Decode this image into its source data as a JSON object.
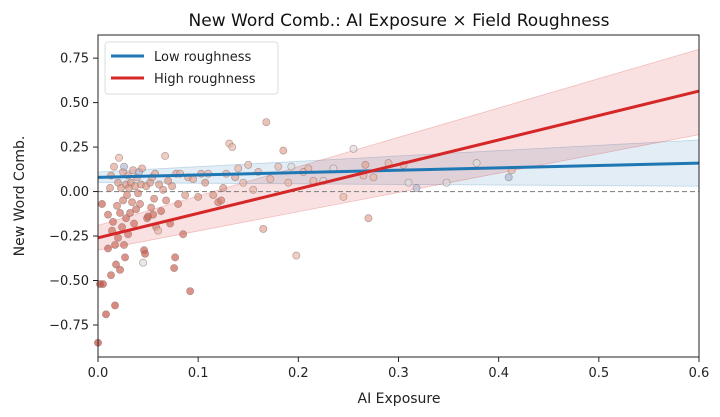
{
  "chart_data": {
    "type": "scatter",
    "title": "New Word Comb.: AI Exposure × Field Roughness",
    "xlabel": "AI Exposure",
    "ylabel": "New Word Comb.",
    "xlim": [
      0.0,
      0.6
    ],
    "ylim": [
      -0.93,
      0.88
    ],
    "xticks": [
      "0.0",
      "0.1",
      "0.2",
      "0.3",
      "0.4",
      "0.5",
      "0.6"
    ],
    "yticks": [
      "−0.75",
      "−0.50",
      "−0.25",
      "0.00",
      "0.25",
      "0.50",
      "0.75"
    ],
    "xtick_values": [
      0.0,
      0.1,
      0.2,
      0.3,
      0.4,
      0.5,
      0.6
    ],
    "ytick_values": [
      -0.75,
      -0.5,
      -0.25,
      0.0,
      0.25,
      0.5,
      0.75
    ],
    "reference_line": {
      "y": 0.0,
      "style": "dashed",
      "color": "#888888"
    },
    "legend": {
      "placement": "top-left"
    },
    "series": [
      {
        "name": "Low roughness",
        "type": "line",
        "color": "#1f77b4",
        "x": [
          0.0,
          0.6
        ],
        "y": [
          0.08,
          0.16
        ],
        "ci_lower": [
          0.05,
          0.03
        ],
        "ci_upper": [
          0.11,
          0.29
        ]
      },
      {
        "name": "High roughness",
        "type": "line",
        "color": "#d62728",
        "x": [
          0.0,
          0.6
        ],
        "y": [
          -0.26,
          0.565
        ],
        "ci_lower": [
          -0.33,
          0.32
        ],
        "ci_upper": [
          -0.19,
          0.8
        ]
      }
    ],
    "points": [
      {
        "x": 0.0,
        "y": -0.85,
        "c": "#c0392b"
      },
      {
        "x": 0.002,
        "y": -0.52,
        "c": "#c44a3a"
      },
      {
        "x": 0.005,
        "y": -0.52,
        "c": "#c44a3a"
      },
      {
        "x": 0.004,
        "y": -0.07,
        "c": "#c8594a"
      },
      {
        "x": 0.008,
        "y": -0.69,
        "c": "#c44a3a"
      },
      {
        "x": 0.01,
        "y": -0.32,
        "c": "#c8594a"
      },
      {
        "x": 0.01,
        "y": -0.13,
        "c": "#cc6656"
      },
      {
        "x": 0.012,
        "y": 0.02,
        "c": "#d9907e"
      },
      {
        "x": 0.013,
        "y": -0.47,
        "c": "#c8594a"
      },
      {
        "x": 0.013,
        "y": 0.09,
        "c": "#d9907e"
      },
      {
        "x": 0.014,
        "y": -0.22,
        "c": "#cc6656"
      },
      {
        "x": 0.015,
        "y": -0.17,
        "c": "#cc6656"
      },
      {
        "x": 0.016,
        "y": 0.14,
        "c": "#e0a090"
      },
      {
        "x": 0.017,
        "y": -0.3,
        "c": "#cc6656"
      },
      {
        "x": 0.017,
        "y": -0.64,
        "c": "#c44a3a"
      },
      {
        "x": 0.018,
        "y": -0.41,
        "c": "#c8594a"
      },
      {
        "x": 0.019,
        "y": -0.08,
        "c": "#d27a68"
      },
      {
        "x": 0.02,
        "y": 0.05,
        "c": "#d9907e"
      },
      {
        "x": 0.02,
        "y": -0.26,
        "c": "#cc6656"
      },
      {
        "x": 0.021,
        "y": 0.19,
        "c": "#e8b3a4"
      },
      {
        "x": 0.022,
        "y": -0.12,
        "c": "#cc6656"
      },
      {
        "x": 0.022,
        "y": -0.44,
        "c": "#c8594a"
      },
      {
        "x": 0.023,
        "y": 0.02,
        "c": "#d9907e"
      },
      {
        "x": 0.024,
        "y": -0.2,
        "c": "#cc6656"
      },
      {
        "x": 0.025,
        "y": 0.11,
        "c": "#e0a090"
      },
      {
        "x": 0.025,
        "y": -0.05,
        "c": "#d27a68"
      },
      {
        "x": 0.026,
        "y": 0.14,
        "c": "#a9b7d6"
      },
      {
        "x": 0.026,
        "y": -0.3,
        "c": "#cc6656"
      },
      {
        "x": 0.027,
        "y": -0.37,
        "c": "#c8594a"
      },
      {
        "x": 0.028,
        "y": -0.15,
        "c": "#cc6656"
      },
      {
        "x": 0.028,
        "y": 0.04,
        "c": "#d9907e"
      },
      {
        "x": 0.029,
        "y": -0.02,
        "c": "#d27a68"
      },
      {
        "x": 0.03,
        "y": 0.09,
        "c": "#e0a090"
      },
      {
        "x": 0.03,
        "y": -0.24,
        "c": "#cc6656"
      },
      {
        "x": 0.031,
        "y": 0.02,
        "c": "#d9907e"
      },
      {
        "x": 0.032,
        "y": -0.12,
        "c": "#cc6656"
      },
      {
        "x": 0.033,
        "y": 0.05,
        "c": "#d9907e"
      },
      {
        "x": 0.034,
        "y": -0.06,
        "c": "#d27a68"
      },
      {
        "x": 0.035,
        "y": 0.12,
        "c": "#e0a090"
      },
      {
        "x": 0.036,
        "y": -0.18,
        "c": "#cc6656"
      },
      {
        "x": 0.037,
        "y": 0.03,
        "c": "#d9907e"
      },
      {
        "x": 0.038,
        "y": -0.1,
        "c": "#cc6656"
      },
      {
        "x": 0.039,
        "y": 0.08,
        "c": "#e0a090"
      },
      {
        "x": 0.04,
        "y": -0.01,
        "c": "#d27a68"
      },
      {
        "x": 0.041,
        "y": 0.11,
        "c": "#a9b7d6"
      },
      {
        "x": 0.042,
        "y": -0.07,
        "c": "#d27a68"
      },
      {
        "x": 0.043,
        "y": 0.04,
        "c": "#d9907e"
      },
      {
        "x": 0.044,
        "y": 0.13,
        "c": "#e0a090"
      },
      {
        "x": 0.045,
        "y": -0.4,
        "c": "#dcdcdc"
      },
      {
        "x": 0.046,
        "y": -0.33,
        "c": "#c8594a"
      },
      {
        "x": 0.047,
        "y": -0.35,
        "c": "#c8594a"
      },
      {
        "x": 0.048,
        "y": 0.03,
        "c": "#d9907e"
      },
      {
        "x": 0.049,
        "y": -0.15,
        "c": "#cc6656"
      },
      {
        "x": 0.05,
        "y": -0.14,
        "c": "#cc6656"
      },
      {
        "x": 0.052,
        "y": 0.05,
        "c": "#d9907e"
      },
      {
        "x": 0.053,
        "y": -0.09,
        "c": "#d27a68"
      },
      {
        "x": 0.054,
        "y": 0.08,
        "c": "#e0a090"
      },
      {
        "x": 0.055,
        "y": -0.13,
        "c": "#cc6656"
      },
      {
        "x": 0.056,
        "y": -0.04,
        "c": "#d27a68"
      },
      {
        "x": 0.057,
        "y": 0.1,
        "c": "#e0a090"
      },
      {
        "x": 0.058,
        "y": -0.2,
        "c": "#d27a68"
      },
      {
        "x": 0.06,
        "y": -0.22,
        "c": "#e8b3a4"
      },
      {
        "x": 0.061,
        "y": 0.04,
        "c": "#d9907e"
      },
      {
        "x": 0.063,
        "y": -0.11,
        "c": "#cc6656"
      },
      {
        "x": 0.065,
        "y": 0.01,
        "c": "#d9907e"
      },
      {
        "x": 0.067,
        "y": 0.2,
        "c": "#e8b3a4"
      },
      {
        "x": 0.068,
        "y": -0.05,
        "c": "#d27a68"
      },
      {
        "x": 0.07,
        "y": 0.06,
        "c": "#d9907e"
      },
      {
        "x": 0.072,
        "y": -0.18,
        "c": "#cc6656"
      },
      {
        "x": 0.074,
        "y": 0.03,
        "c": "#d9907e"
      },
      {
        "x": 0.076,
        "y": -0.43,
        "c": "#c8594a"
      },
      {
        "x": 0.077,
        "y": -0.37,
        "c": "#c8594a"
      },
      {
        "x": 0.078,
        "y": 0.1,
        "c": "#e0a090"
      },
      {
        "x": 0.08,
        "y": -0.07,
        "c": "#d27a68"
      },
      {
        "x": 0.082,
        "y": 0.1,
        "c": "#e8b3a4"
      },
      {
        "x": 0.085,
        "y": -0.24,
        "c": "#cc6656"
      },
      {
        "x": 0.087,
        "y": -0.02,
        "c": "#d9907e"
      },
      {
        "x": 0.09,
        "y": 0.08,
        "c": "#e0a090"
      },
      {
        "x": 0.092,
        "y": -0.56,
        "c": "#c8594a"
      },
      {
        "x": 0.095,
        "y": 0.07,
        "c": "#e0a090"
      },
      {
        "x": 0.1,
        "y": -0.03,
        "c": "#d9907e"
      },
      {
        "x": 0.103,
        "y": 0.1,
        "c": "#e0a090"
      },
      {
        "x": 0.107,
        "y": 0.05,
        "c": "#d9907e"
      },
      {
        "x": 0.11,
        "y": 0.1,
        "c": "#e8b3a4"
      },
      {
        "x": 0.115,
        "y": -0.02,
        "c": "#d9907e"
      },
      {
        "x": 0.12,
        "y": -0.06,
        "c": "#d27a68"
      },
      {
        "x": 0.123,
        "y": -0.05,
        "c": "#d27a68"
      },
      {
        "x": 0.125,
        "y": 0.02,
        "c": "#d9907e"
      },
      {
        "x": 0.128,
        "y": 0.1,
        "c": "#e8b3a4"
      },
      {
        "x": 0.131,
        "y": 0.27,
        "c": "#e8b3a4"
      },
      {
        "x": 0.134,
        "y": 0.25,
        "c": "#e8b3a4"
      },
      {
        "x": 0.137,
        "y": 0.08,
        "c": "#e0a090"
      },
      {
        "x": 0.14,
        "y": 0.13,
        "c": "#e8b3a4"
      },
      {
        "x": 0.145,
        "y": 0.05,
        "c": "#e8b3a4"
      },
      {
        "x": 0.15,
        "y": 0.15,
        "c": "#e8b3a4"
      },
      {
        "x": 0.155,
        "y": 0.01,
        "c": "#e8b3a4"
      },
      {
        "x": 0.16,
        "y": 0.11,
        "c": "#e8b3a4"
      },
      {
        "x": 0.165,
        "y": -0.21,
        "c": "#e0a090"
      },
      {
        "x": 0.168,
        "y": 0.39,
        "c": "#e0a090"
      },
      {
        "x": 0.172,
        "y": 0.07,
        "c": "#e8b3a4"
      },
      {
        "x": 0.18,
        "y": 0.14,
        "c": "#e8b3a4"
      },
      {
        "x": 0.185,
        "y": 0.23,
        "c": "#e0a090"
      },
      {
        "x": 0.19,
        "y": 0.05,
        "c": "#e8b3a4"
      },
      {
        "x": 0.193,
        "y": 0.14,
        "c": "#dcdcdc"
      },
      {
        "x": 0.198,
        "y": -0.36,
        "c": "#e8b3a4"
      },
      {
        "x": 0.205,
        "y": 0.11,
        "c": "#e8b3a4"
      },
      {
        "x": 0.21,
        "y": 0.13,
        "c": "#e8b3a4"
      },
      {
        "x": 0.215,
        "y": 0.06,
        "c": "#e8b3a4"
      },
      {
        "x": 0.225,
        "y": 0.06,
        "c": "#dcdcdc"
      },
      {
        "x": 0.235,
        "y": 0.13,
        "c": "#dcdcdc"
      },
      {
        "x": 0.245,
        "y": -0.03,
        "c": "#e8b3a4"
      },
      {
        "x": 0.255,
        "y": 0.24,
        "c": "#dcdcdc"
      },
      {
        "x": 0.265,
        "y": 0.09,
        "c": "#e8b3a4"
      },
      {
        "x": 0.267,
        "y": 0.15,
        "c": "#e0a090"
      },
      {
        "x": 0.27,
        "y": -0.15,
        "c": "#e0a090"
      },
      {
        "x": 0.275,
        "y": 0.08,
        "c": "#e8b3a4"
      },
      {
        "x": 0.29,
        "y": 0.16,
        "c": "#e8b3a4"
      },
      {
        "x": 0.305,
        "y": 0.15,
        "c": "#e8b3a4"
      },
      {
        "x": 0.31,
        "y": 0.05,
        "c": "#dcdcdc"
      },
      {
        "x": 0.318,
        "y": 0.02,
        "c": "#a9b7d6"
      },
      {
        "x": 0.348,
        "y": 0.05,
        "c": "#dcdcdc"
      },
      {
        "x": 0.378,
        "y": 0.16,
        "c": "#dcdcdc"
      },
      {
        "x": 0.41,
        "y": 0.08,
        "c": "#a9b7d6"
      },
      {
        "x": 0.413,
        "y": 0.12,
        "c": "#e8b3a4"
      }
    ]
  }
}
